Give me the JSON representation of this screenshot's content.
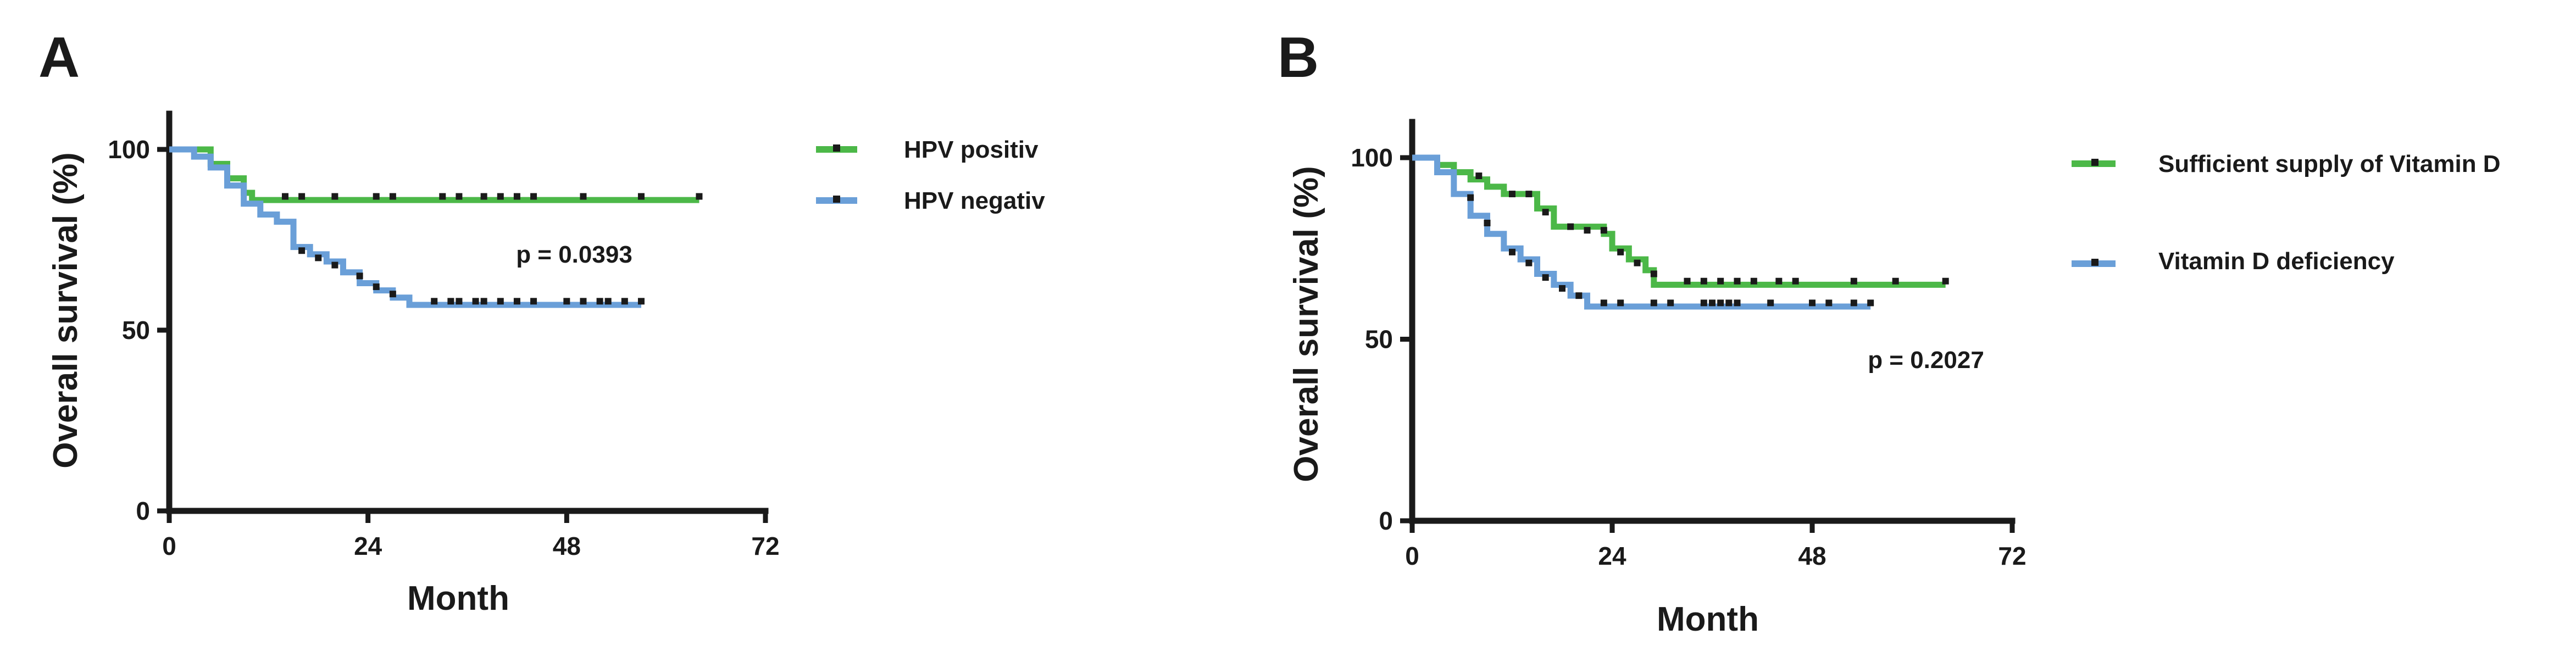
{
  "chart_data": [
    {
      "type": "line",
      "panel_label": "A",
      "title": "",
      "xlabel": "Month",
      "ylabel": "Overall survival (%)",
      "xlim": [
        0,
        72
      ],
      "ylim": [
        0,
        100
      ],
      "xticks": [
        "0",
        "24",
        "48",
        "72"
      ],
      "yticks": [
        "0",
        "50",
        "100"
      ],
      "grid": false,
      "legend_position": "right",
      "annotation": "p = 0.0393",
      "annotation_at": [
        48,
        70
      ],
      "series": [
        {
          "name": "HPV positiv",
          "color": "#4cb848",
          "steps": [
            [
              0,
              100
            ],
            [
              5,
              96
            ],
            [
              7,
              92
            ],
            [
              9,
              88
            ],
            [
              10,
              86
            ],
            [
              64,
              86
            ]
          ],
          "censored": [
            [
              14,
              87
            ],
            [
              16,
              87
            ],
            [
              20,
              87
            ],
            [
              25,
              87
            ],
            [
              27,
              87
            ],
            [
              33,
              87
            ],
            [
              35,
              87
            ],
            [
              38,
              87
            ],
            [
              40,
              87
            ],
            [
              42,
              87
            ],
            [
              44,
              87
            ],
            [
              50,
              87
            ],
            [
              57,
              87
            ],
            [
              64,
              87
            ]
          ]
        },
        {
          "name": "HPV negativ",
          "color": "#6a9fd8",
          "steps": [
            [
              0,
              100
            ],
            [
              3,
              98
            ],
            [
              5,
              95
            ],
            [
              7,
              90
            ],
            [
              9,
              85
            ],
            [
              11,
              82
            ],
            [
              13,
              80
            ],
            [
              15,
              73
            ],
            [
              17,
              71
            ],
            [
              19,
              69
            ],
            [
              21,
              66
            ],
            [
              23,
              63
            ],
            [
              25,
              61
            ],
            [
              27,
              59
            ],
            [
              29,
              57
            ],
            [
              57,
              57
            ]
          ],
          "censored": [
            [
              16,
              72
            ],
            [
              18,
              70
            ],
            [
              20,
              68
            ],
            [
              23,
              65
            ],
            [
              25,
              62
            ],
            [
              27,
              60
            ],
            [
              32,
              58
            ],
            [
              34,
              58
            ],
            [
              35,
              58
            ],
            [
              37,
              58
            ],
            [
              38,
              58
            ],
            [
              40,
              58
            ],
            [
              42,
              58
            ],
            [
              44,
              58
            ],
            [
              48,
              58
            ],
            [
              50,
              58
            ],
            [
              52,
              58
            ],
            [
              53,
              58
            ],
            [
              55,
              58
            ],
            [
              57,
              58
            ]
          ]
        }
      ]
    },
    {
      "type": "line",
      "panel_label": "B",
      "title": "",
      "xlabel": "Month",
      "ylabel": "Overall survival (%)",
      "xlim": [
        0,
        72
      ],
      "ylim": [
        0,
        100
      ],
      "xticks": [
        "0",
        "24",
        "48",
        "72"
      ],
      "yticks": [
        "0",
        "50",
        "100"
      ],
      "grid": false,
      "legend_position": "right",
      "annotation": "p = 0.2027",
      "annotation_at": [
        54,
        43
      ],
      "series": [
        {
          "name": "Sufficient supply of Vitamin D",
          "color": "#4cb848",
          "steps": [
            [
              0,
              100
            ],
            [
              3,
              98
            ],
            [
              5,
              96
            ],
            [
              7,
              94
            ],
            [
              9,
              92
            ],
            [
              11,
              90
            ],
            [
              15,
              86
            ],
            [
              17,
              81
            ],
            [
              23,
              79
            ],
            [
              24,
              75
            ],
            [
              26,
              72
            ],
            [
              28,
              69
            ],
            [
              29,
              65
            ],
            [
              64,
              65
            ]
          ],
          "censored": [
            [
              8,
              95
            ],
            [
              12,
              90
            ],
            [
              14,
              90
            ],
            [
              16,
              85
            ],
            [
              19,
              81
            ],
            [
              21,
              80
            ],
            [
              23,
              80
            ],
            [
              25,
              74
            ],
            [
              27,
              71
            ],
            [
              29,
              68
            ],
            [
              33,
              66
            ],
            [
              35,
              66
            ],
            [
              37,
              66
            ],
            [
              39,
              66
            ],
            [
              41,
              66
            ],
            [
              44,
              66
            ],
            [
              46,
              66
            ],
            [
              53,
              66
            ],
            [
              58,
              66
            ],
            [
              64,
              66
            ]
          ]
        },
        {
          "name": "Vitamin D deficiency",
          "color": "#6a9fd8",
          "steps": [
            [
              0,
              100
            ],
            [
              3,
              96
            ],
            [
              5,
              90
            ],
            [
              7,
              84
            ],
            [
              9,
              79
            ],
            [
              11,
              75
            ],
            [
              13,
              72
            ],
            [
              15,
              68
            ],
            [
              17,
              65
            ],
            [
              19,
              62
            ],
            [
              21,
              59
            ],
            [
              55,
              59
            ]
          ],
          "censored": [
            [
              7,
              89
            ],
            [
              9,
              82
            ],
            [
              12,
              74
            ],
            [
              14,
              71
            ],
            [
              16,
              67
            ],
            [
              18,
              64
            ],
            [
              20,
              62
            ],
            [
              23,
              60
            ],
            [
              25,
              60
            ],
            [
              29,
              60
            ],
            [
              31,
              60
            ],
            [
              35,
              60
            ],
            [
              36,
              60
            ],
            [
              37,
              60
            ],
            [
              38,
              60
            ],
            [
              39,
              60
            ],
            [
              43,
              60
            ],
            [
              48,
              60
            ],
            [
              50,
              60
            ],
            [
              53,
              60
            ],
            [
              55,
              60
            ]
          ]
        }
      ]
    }
  ]
}
